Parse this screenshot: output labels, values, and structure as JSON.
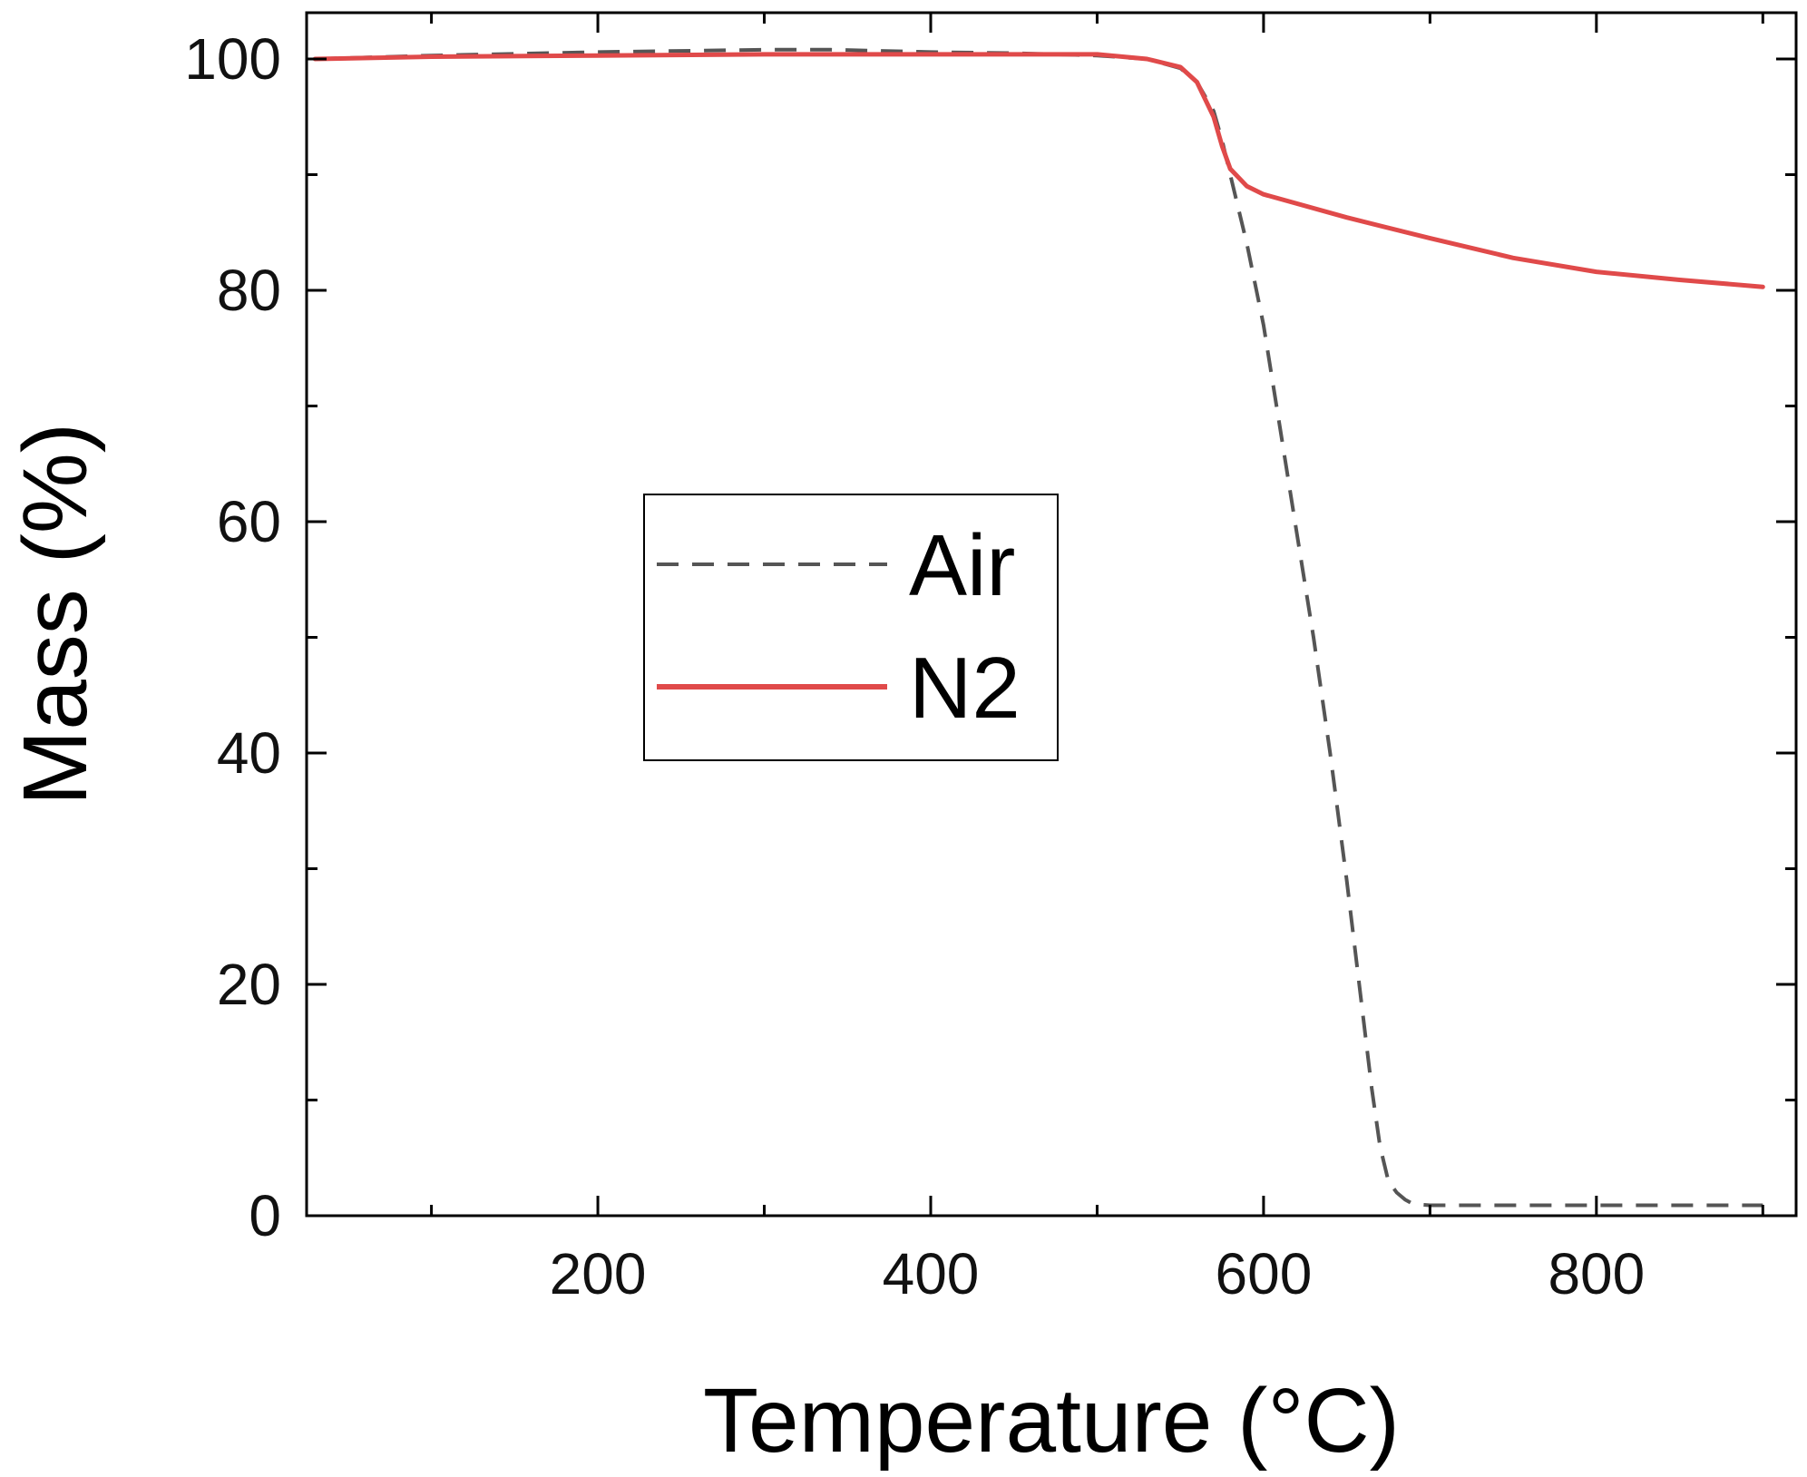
{
  "chart_data": {
    "type": "line",
    "xlabel": "Temperature (°C)",
    "ylabel": "Mass (%)",
    "xlim": [
      25,
      920
    ],
    "ylim": [
      0,
      104
    ],
    "x_ticks": [
      200,
      400,
      600,
      800
    ],
    "y_ticks": [
      0,
      20,
      40,
      60,
      80,
      100
    ],
    "grid": false,
    "legend_position": "center-left",
    "series": [
      {
        "name": "Air",
        "style": "dashed",
        "color": "#555555",
        "x": [
          30,
          100,
          200,
          300,
          340,
          400,
          450,
          500,
          530,
          550,
          560,
          570,
          575,
          580,
          590,
          600,
          610,
          620,
          630,
          640,
          650,
          660,
          665,
          670,
          675,
          680,
          685,
          690,
          700,
          750,
          800,
          850,
          900
        ],
        "y": [
          100,
          100.3,
          100.6,
          100.8,
          100.8,
          100.6,
          100.5,
          100.3,
          100,
          99.2,
          98,
          95.5,
          93,
          90,
          84,
          77,
          68,
          59,
          50,
          40,
          29,
          17,
          11,
          6,
          3,
          2,
          1.4,
          1,
          0.9,
          0.9,
          0.9,
          0.9,
          0.9
        ]
      },
      {
        "name": "N2",
        "style": "solid",
        "color": "#e04a4a",
        "x": [
          30,
          100,
          200,
          300,
          400,
          450,
          500,
          530,
          550,
          560,
          570,
          575,
          580,
          590,
          600,
          650,
          700,
          750,
          800,
          850,
          900
        ],
        "y": [
          100,
          100.2,
          100.3,
          100.4,
          100.4,
          100.4,
          100.4,
          100,
          99.3,
          98,
          95,
          92.5,
          90.5,
          89,
          88.3,
          86.3,
          84.5,
          82.8,
          81.6,
          80.9,
          80.3
        ]
      }
    ]
  }
}
